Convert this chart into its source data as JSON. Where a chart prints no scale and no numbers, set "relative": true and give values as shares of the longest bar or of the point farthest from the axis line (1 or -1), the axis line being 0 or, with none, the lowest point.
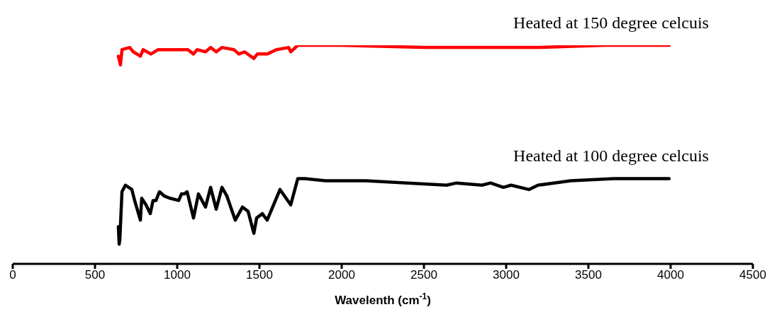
{
  "chart_data": {
    "type": "line",
    "relative": true,
    "xlabel": "Wavelenth (cm$^{-1}$)",
    "xlim": [
      0,
      4500
    ],
    "xticks": [
      0,
      500,
      1000,
      1500,
      2000,
      2500,
      3000,
      3500,
      4000,
      4500
    ],
    "marker": "none",
    "line_style": "solid",
    "series": [
      {
        "name": "Heated at 150 degree celcuis",
        "color": "#ff0000",
        "x": [
          642,
          655,
          664,
          711,
          733,
          776,
          793,
          840,
          884,
          1000,
          1065,
          1099,
          1121,
          1172,
          1203,
          1237,
          1272,
          1345,
          1375,
          1409,
          1466,
          1487,
          1547,
          1603,
          1677,
          1690,
          1733,
          1862,
          2000,
          2500,
          3000,
          3200,
          3600,
          3991
        ],
        "values": [
          0.95,
          0.91,
          0.98,
          0.99,
          0.97,
          0.95,
          0.98,
          0.96,
          0.98,
          0.98,
          0.98,
          0.96,
          0.98,
          0.97,
          0.99,
          0.97,
          0.99,
          0.98,
          0.96,
          0.97,
          0.94,
          0.96,
          0.96,
          0.98,
          0.99,
          0.97,
          1.0,
          1.0,
          1.0,
          0.99,
          0.99,
          0.99,
          1.0,
          1.0
        ]
      },
      {
        "name": "Heated at 100 degree celcuis",
        "color": "#000000",
        "x": [
          642,
          647,
          651,
          664,
          685,
          724,
          741,
          776,
          784,
          810,
          836,
          853,
          871,
          892,
          922,
          957,
          1009,
          1026,
          1043,
          1060,
          1099,
          1129,
          1172,
          1203,
          1237,
          1272,
          1302,
          1353,
          1397,
          1431,
          1466,
          1483,
          1517,
          1547,
          1625,
          1690,
          1733,
          1776,
          1901,
          2147,
          2638,
          2698,
          2853,
          2905,
          2983,
          3030,
          3138,
          3194,
          3392,
          3655,
          3991
        ],
        "values": [
          0.17,
          0.09,
          0.11,
          0.33,
          0.36,
          0.34,
          0.29,
          0.2,
          0.3,
          0.27,
          0.23,
          0.29,
          0.29,
          0.33,
          0.31,
          0.3,
          0.29,
          0.32,
          0.32,
          0.33,
          0.21,
          0.32,
          0.26,
          0.35,
          0.25,
          0.35,
          0.31,
          0.2,
          0.26,
          0.24,
          0.14,
          0.21,
          0.23,
          0.2,
          0.34,
          0.27,
          0.39,
          0.39,
          0.38,
          0.38,
          0.36,
          0.37,
          0.36,
          0.37,
          0.35,
          0.36,
          0.34,
          0.36,
          0.38,
          0.39,
          0.39
        ]
      }
    ]
  }
}
